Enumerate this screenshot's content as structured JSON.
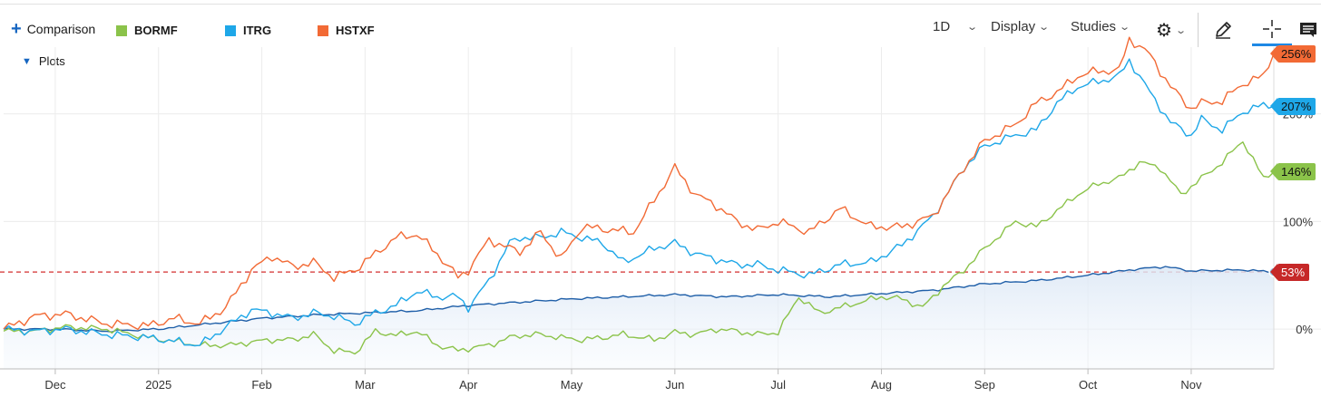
{
  "toolbar": {
    "comparison_label": "Comparison",
    "interval_label": "1D",
    "display_label": "Display",
    "studies_label": "Studies",
    "plots_label": "Plots"
  },
  "colors": {
    "bormf": "#8bc34a",
    "itrg": "#1ea7e8",
    "hstxf": "#f26a35",
    "main": "#1f5fa8",
    "baseline": "#d32f2f",
    "accent": "#1e88e5"
  },
  "chart_data": {
    "type": "line",
    "x_labels": [
      "Dec",
      "2025",
      "Feb",
      "Mar",
      "Apr",
      "May",
      "Jun",
      "Jul",
      "Aug",
      "Sep",
      "Oct",
      "Nov"
    ],
    "x_label_index": [
      10,
      30,
      50,
      70,
      90,
      110,
      130,
      150,
      170,
      190,
      210,
      230
    ],
    "y_ticks": [
      "0%",
      "100%",
      "200%"
    ],
    "y_tick_values": [
      0,
      100,
      200
    ],
    "ylim": [
      -37,
      262
    ],
    "baseline_value": 53,
    "series": [
      {
        "name": "HSTXF",
        "color": "#f26a35",
        "last_label": "256%",
        "keypoints": [
          [
            0,
            0
          ],
          [
            6,
            12
          ],
          [
            12,
            14
          ],
          [
            20,
            5
          ],
          [
            28,
            3
          ],
          [
            33,
            10
          ],
          [
            38,
            5
          ],
          [
            43,
            20
          ],
          [
            48,
            55
          ],
          [
            52,
            68
          ],
          [
            56,
            58
          ],
          [
            60,
            62
          ],
          [
            64,
            48
          ],
          [
            68,
            55
          ],
          [
            72,
            70
          ],
          [
            76,
            85
          ],
          [
            80,
            88
          ],
          [
            84,
            70
          ],
          [
            88,
            48
          ],
          [
            90,
            55
          ],
          [
            94,
            83
          ],
          [
            98,
            75
          ],
          [
            100,
            72
          ],
          [
            104,
            90
          ],
          [
            108,
            65
          ],
          [
            112,
            95
          ],
          [
            118,
            92
          ],
          [
            122,
            90
          ],
          [
            126,
            120
          ],
          [
            130,
            150
          ],
          [
            134,
            125
          ],
          [
            138,
            115
          ],
          [
            142,
            100
          ],
          [
            146,
            92
          ],
          [
            150,
            100
          ],
          [
            156,
            90
          ],
          [
            162,
            112
          ],
          [
            168,
            95
          ],
          [
            174,
            95
          ],
          [
            180,
            105
          ],
          [
            186,
            150
          ],
          [
            190,
            175
          ],
          [
            196,
            190
          ],
          [
            200,
            210
          ],
          [
            204,
            220
          ],
          [
            208,
            235
          ],
          [
            212,
            240
          ],
          [
            216,
            240
          ],
          [
            218,
            270
          ],
          [
            222,
            255
          ],
          [
            226,
            225
          ],
          [
            230,
            205
          ],
          [
            232,
            210
          ],
          [
            236,
            212
          ],
          [
            240,
            228
          ],
          [
            244,
            235
          ],
          [
            246,
            256
          ]
        ]
      },
      {
        "name": "ITRG",
        "color": "#1ea7e8",
        "last_label": "207%",
        "keypoints": [
          [
            0,
            0
          ],
          [
            6,
            -2
          ],
          [
            12,
            0
          ],
          [
            20,
            -5
          ],
          [
            28,
            -8
          ],
          [
            34,
            -12
          ],
          [
            38,
            -15
          ],
          [
            44,
            5
          ],
          [
            48,
            18
          ],
          [
            52,
            15
          ],
          [
            56,
            10
          ],
          [
            60,
            15
          ],
          [
            64,
            12
          ],
          [
            68,
            5
          ],
          [
            72,
            15
          ],
          [
            76,
            22
          ],
          [
            80,
            35
          ],
          [
            84,
            30
          ],
          [
            88,
            30
          ],
          [
            90,
            20
          ],
          [
            94,
            45
          ],
          [
            98,
            80
          ],
          [
            100,
            85
          ],
          [
            104,
            85
          ],
          [
            108,
            90
          ],
          [
            112,
            85
          ],
          [
            116,
            80
          ],
          [
            120,
            62
          ],
          [
            126,
            75
          ],
          [
            130,
            80
          ],
          [
            134,
            70
          ],
          [
            138,
            65
          ],
          [
            142,
            60
          ],
          [
            146,
            60
          ],
          [
            150,
            55
          ],
          [
            156,
            50
          ],
          [
            162,
            60
          ],
          [
            168,
            62
          ],
          [
            174,
            78
          ],
          [
            180,
            105
          ],
          [
            186,
            150
          ],
          [
            190,
            170
          ],
          [
            196,
            180
          ],
          [
            200,
            185
          ],
          [
            204,
            210
          ],
          [
            208,
            225
          ],
          [
            212,
            230
          ],
          [
            216,
            235
          ],
          [
            218,
            250
          ],
          [
            222,
            220
          ],
          [
            226,
            192
          ],
          [
            230,
            180
          ],
          [
            232,
            195
          ],
          [
            236,
            185
          ],
          [
            240,
            202
          ],
          [
            244,
            208
          ],
          [
            246,
            207
          ]
        ]
      },
      {
        "name": "BORMF",
        "color": "#8bc34a",
        "last_label": "146%",
        "keypoints": [
          [
            0,
            -2
          ],
          [
            6,
            -2
          ],
          [
            12,
            2
          ],
          [
            20,
            0
          ],
          [
            28,
            -8
          ],
          [
            34,
            -12
          ],
          [
            38,
            -15
          ],
          [
            44,
            -15
          ],
          [
            48,
            -12
          ],
          [
            52,
            -10
          ],
          [
            56,
            -10
          ],
          [
            60,
            -5
          ],
          [
            64,
            -20
          ],
          [
            68,
            -22
          ],
          [
            72,
            -2
          ],
          [
            76,
            -6
          ],
          [
            80,
            -2
          ],
          [
            84,
            -15
          ],
          [
            88,
            -20
          ],
          [
            90,
            -18
          ],
          [
            94,
            -15
          ],
          [
            98,
            -8
          ],
          [
            100,
            -6
          ],
          [
            104,
            -5
          ],
          [
            108,
            -8
          ],
          [
            112,
            -10
          ],
          [
            116,
            -8
          ],
          [
            120,
            -5
          ],
          [
            126,
            -10
          ],
          [
            130,
            -3
          ],
          [
            134,
            -5
          ],
          [
            138,
            0
          ],
          [
            142,
            -2
          ],
          [
            146,
            -5
          ],
          [
            150,
            -3
          ],
          [
            154,
            30
          ],
          [
            158,
            15
          ],
          [
            162,
            20
          ],
          [
            166,
            25
          ],
          [
            170,
            30
          ],
          [
            174,
            28
          ],
          [
            178,
            20
          ],
          [
            182,
            40
          ],
          [
            186,
            55
          ],
          [
            190,
            75
          ],
          [
            196,
            100
          ],
          [
            200,
            95
          ],
          [
            204,
            110
          ],
          [
            208,
            125
          ],
          [
            212,
            135
          ],
          [
            216,
            140
          ],
          [
            220,
            155
          ],
          [
            224,
            150
          ],
          [
            228,
            125
          ],
          [
            232,
            140
          ],
          [
            236,
            155
          ],
          [
            240,
            175
          ],
          [
            244,
            140
          ],
          [
            246,
            146
          ]
        ]
      },
      {
        "name": "main",
        "color": "#1f5fa8",
        "last_label": "53%",
        "keypoints": [
          [
            0,
            0
          ],
          [
            10,
            0
          ],
          [
            20,
            -2
          ],
          [
            30,
            0
          ],
          [
            40,
            5
          ],
          [
            50,
            10
          ],
          [
            60,
            13
          ],
          [
            70,
            15
          ],
          [
            80,
            17
          ],
          [
            90,
            22
          ],
          [
            100,
            25
          ],
          [
            110,
            28
          ],
          [
            120,
            30
          ],
          [
            130,
            32
          ],
          [
            140,
            30
          ],
          [
            150,
            32
          ],
          [
            160,
            30
          ],
          [
            170,
            33
          ],
          [
            180,
            36
          ],
          [
            190,
            42
          ],
          [
            200,
            45
          ],
          [
            210,
            50
          ],
          [
            220,
            56
          ],
          [
            225,
            58
          ],
          [
            230,
            54
          ],
          [
            240,
            55
          ],
          [
            246,
            53
          ]
        ]
      }
    ]
  }
}
